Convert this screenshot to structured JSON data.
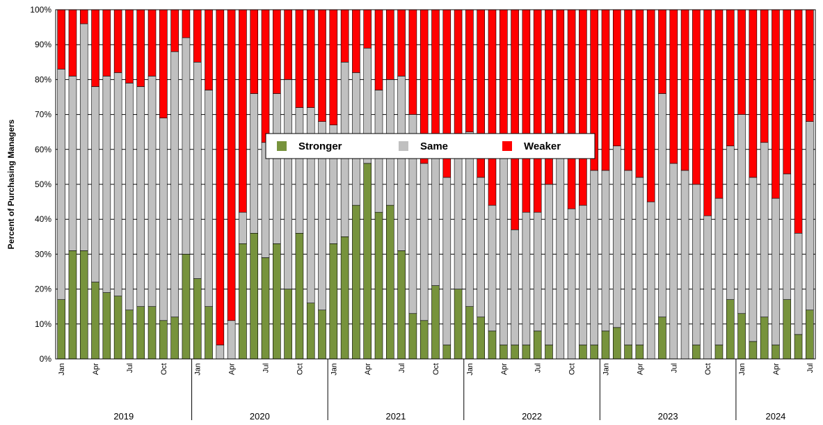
{
  "chart_data": {
    "type": "stacked_bar",
    "y_label": "Percent of Purchasing Managers",
    "categories": [
      "Jan",
      null,
      null,
      "Apr",
      null,
      null,
      "Jul",
      null,
      null,
      "Oct",
      null,
      null,
      "Jan",
      null,
      null,
      "Apr",
      null,
      null,
      "Jul",
      null,
      null,
      "Oct",
      null,
      null,
      "Jan",
      null,
      null,
      "Apr",
      null,
      null,
      "Jul",
      null,
      null,
      "Oct",
      null,
      null,
      "Jan",
      null,
      null,
      "Apr",
      null,
      null,
      "Jul",
      null,
      null,
      "Oct",
      null,
      null,
      "Jan",
      null,
      null,
      "Apr",
      null,
      null,
      "Jul",
      null,
      null,
      "Oct",
      null,
      null,
      "Jan",
      null,
      null,
      "Apr",
      null,
      null,
      "Jul"
    ],
    "years": [
      "2019",
      "2020",
      "2021",
      "2022",
      "2023",
      "2024"
    ],
    "series": [
      {
        "name": "Stronger",
        "color": "#77933c",
        "values": [
          17,
          31,
          31,
          22,
          19,
          18,
          14,
          15,
          15,
          11,
          12,
          30,
          23,
          15,
          0,
          0,
          33,
          36,
          29,
          33,
          20,
          36,
          16,
          14,
          33,
          35,
          44,
          56,
          42,
          44,
          31,
          13,
          11,
          21,
          4,
          20,
          15,
          12,
          8,
          4,
          4,
          4,
          8,
          4,
          0,
          0,
          4,
          4,
          8,
          9,
          4,
          4,
          0,
          12,
          0,
          0,
          4,
          0,
          4,
          17,
          13,
          5,
          12,
          4,
          17,
          7,
          14
        ]
      },
      {
        "name": "Same",
        "color": "#c0c0c0",
        "values": [
          66,
          50,
          65,
          56,
          62,
          64,
          65,
          63,
          66,
          58,
          76,
          62,
          62,
          62,
          4,
          11,
          9,
          40,
          33,
          43,
          60,
          36,
          56,
          54,
          34,
          50,
          38,
          33,
          35,
          36,
          50,
          57,
          45,
          39,
          48,
          42,
          50,
          40,
          36,
          54,
          33,
          38,
          34,
          46,
          60,
          43,
          40,
          50,
          46,
          52,
          50,
          48,
          45,
          64,
          56,
          54,
          46,
          41,
          42,
          44,
          57,
          47,
          50,
          42,
          36,
          29,
          54
        ]
      },
      {
        "name": "Weaker",
        "color": "#ff0000",
        "values": [
          17,
          19,
          4,
          22,
          19,
          18,
          21,
          22,
          19,
          31,
          12,
          8,
          15,
          23,
          96,
          89,
          58,
          24,
          38,
          24,
          20,
          28,
          28,
          32,
          33,
          15,
          18,
          11,
          23,
          20,
          19,
          30,
          44,
          40,
          48,
          38,
          35,
          48,
          56,
          42,
          63,
          58,
          58,
          50,
          40,
          57,
          56,
          46,
          46,
          39,
          46,
          48,
          55,
          24,
          44,
          46,
          50,
          59,
          54,
          39,
          30,
          48,
          38,
          54,
          47,
          64,
          32
        ]
      }
    ],
    "ylim": [
      0,
      100
    ],
    "yticks": [
      {
        "value": 0,
        "label": "0%"
      },
      {
        "value": 10,
        "label": "10%"
      },
      {
        "value": 20,
        "label": "20%"
      },
      {
        "value": 30,
        "label": "30%"
      },
      {
        "value": 40,
        "label": "40%"
      },
      {
        "value": 50,
        "label": "50%"
      },
      {
        "value": 60,
        "label": "60%"
      },
      {
        "value": 70,
        "label": "70%"
      },
      {
        "value": 80,
        "label": "80%"
      },
      {
        "value": 90,
        "label": "90%"
      },
      {
        "value": 100,
        "label": "100%"
      }
    ],
    "grid": true,
    "legend": "top"
  }
}
